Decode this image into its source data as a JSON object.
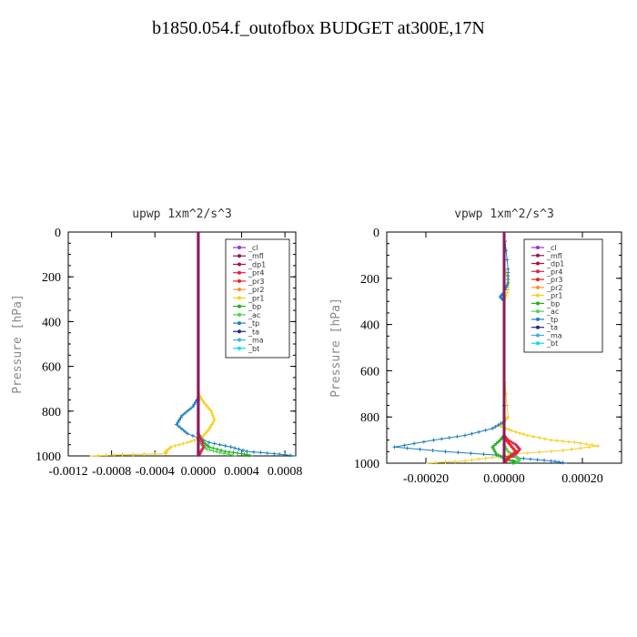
{
  "figure_title": "b1850.054.f_outofbox  BUDGET at300E,17N",
  "legend_labels": [
    "_cl",
    "_mfl",
    "_dp1",
    "_pr4",
    "_pr3",
    "_pr2",
    "_pr1",
    "_bp",
    "_ac",
    "_tp",
    "_ta",
    "_ma",
    "_bt"
  ],
  "colors": {
    "_cl": "#9b30d9",
    "_mfl": "#8b1a5a",
    "_dp1": "#b0103a",
    "_pr4": "#e0204a",
    "_pr3": "#f02020",
    "_pr2": "#ff9030",
    "_pr1": "#f5d020",
    "_bp": "#20b020",
    "_ac": "#50d050",
    "_tp": "#1e7fc0",
    "_ta": "#1a2a90",
    "_ma": "#40b0e0",
    "_bt": "#00e0f0"
  },
  "chart_data": [
    {
      "type": "line",
      "title": "upwp  1xm^2/s^3",
      "ylabel": "Pressure [hPa]",
      "xlabel": "",
      "xlim": [
        -0.0012,
        0.0009
      ],
      "ylim": [
        1000,
        0
      ],
      "xticks": [
        "-0.0012",
        "-0.0008",
        "-0.0004",
        "0.0000",
        "0.0004",
        "0.0008"
      ],
      "xtick_values": [
        -0.0012,
        -0.0008,
        -0.0004,
        0,
        0.0004,
        0.0008
      ],
      "yticks": [
        0,
        200,
        400,
        600,
        800,
        1000
      ],
      "legend_position": "top-right",
      "series": [
        {
          "name": "_pr1",
          "x": [
            0,
            0,
            5e-05,
            0.00012,
            0.00015,
            0.0001,
            3e-05,
            -0.0001,
            -0.00025,
            -0.0003,
            -0.0003,
            -0.0007,
            -0.001
          ],
          "y": [
            0,
            720,
            760,
            800,
            840,
            880,
            920,
            940,
            960,
            980,
            990,
            995,
            1000
          ]
        },
        {
          "name": "_tp",
          "x": [
            0,
            0,
            -5e-05,
            -0.00015,
            -0.0002,
            -0.0001,
            0.0001,
            0.0003,
            0.00045,
            0.0007,
            0.0009
          ],
          "y": [
            0,
            740,
            780,
            820,
            860,
            900,
            940,
            960,
            980,
            990,
            1000
          ]
        },
        {
          "name": "_bp",
          "x": [
            0,
            0,
            5e-05,
            0.0001,
            0.00025,
            0.0004,
            0.0005
          ],
          "y": [
            0,
            900,
            940,
            960,
            980,
            990,
            1000
          ]
        },
        {
          "name": "_ac",
          "x": [
            0,
            0,
            3e-05,
            8e-05,
            0.0002,
            0.00035
          ],
          "y": [
            0,
            920,
            950,
            970,
            985,
            1000
          ]
        },
        {
          "name": "_pr4",
          "x": [
            0,
            0,
            3e-05,
            5e-05,
            2e-05,
            0
          ],
          "y": [
            0,
            900,
            930,
            960,
            985,
            1000
          ]
        },
        {
          "name": "_cl",
          "x": [
            0,
            0
          ],
          "y": [
            0,
            1000
          ]
        },
        {
          "name": "_mfl",
          "x": [
            0,
            0
          ],
          "y": [
            0,
            1000
          ]
        }
      ]
    },
    {
      "type": "line",
      "title": "vpwp  1xm^2/s^3",
      "ylabel": "Pressure [hPa]",
      "xlabel": "",
      "xlim": [
        -0.0003,
        0.0003
      ],
      "ylim": [
        1000,
        0
      ],
      "xticks": [
        "-0.00020",
        "0.00000",
        "0.00020"
      ],
      "xtick_values": [
        -0.0002,
        0,
        0.0002
      ],
      "yticks": [
        0,
        200,
        400,
        600,
        800,
        1000
      ],
      "legend_position": "top-right",
      "series": [
        {
          "name": "_pr1",
          "x": [
            0,
            0,
            1e-05,
            1e-05,
            0,
            0,
            1e-05,
            0,
            -1e-05,
            2e-05,
            6e-05,
            0.00012,
            0.00018,
            0.00024,
            0.00015,
            3e-05,
            -3e-05,
            -0.0001,
            -0.0002
          ],
          "y": [
            0,
            150,
            200,
            250,
            300,
            600,
            800,
            820,
            840,
            860,
            880,
            900,
            910,
            925,
            945,
            960,
            975,
            990,
            1000
          ]
        },
        {
          "name": "_tp",
          "x": [
            0,
            1e-05,
            1e-05,
            0,
            -1e-05,
            0,
            0,
            -3e-05,
            -0.0001,
            -0.00018,
            -0.00028,
            -0.00015,
            -2e-05,
            5e-05,
            0.00012,
            0.00016
          ],
          "y": [
            0,
            160,
            220,
            260,
            280,
            300,
            820,
            850,
            880,
            900,
            930,
            950,
            965,
            980,
            990,
            1000
          ]
        },
        {
          "name": "_bp",
          "x": [
            0,
            0,
            -1e-05,
            -3e-05,
            -2e-05,
            0,
            2e-05,
            3e-05,
            2e-05
          ],
          "y": [
            0,
            880,
            900,
            930,
            960,
            980,
            990,
            995,
            1000
          ]
        },
        {
          "name": "_ac",
          "x": [
            0,
            0,
            1e-05,
            3e-05,
            4e-05,
            3e-05
          ],
          "y": [
            0,
            920,
            950,
            970,
            985,
            1000
          ]
        },
        {
          "name": "_pr4",
          "x": [
            0,
            0,
            1e-05,
            3e-05,
            4e-05,
            3e-05,
            1e-05,
            0
          ],
          "y": [
            0,
            880,
            900,
            920,
            940,
            960,
            980,
            1000
          ]
        },
        {
          "name": "_pr3",
          "x": [
            0,
            0,
            1e-05,
            2e-05,
            3e-05,
            1e-05,
            0
          ],
          "y": [
            0,
            890,
            910,
            930,
            950,
            975,
            1000
          ]
        },
        {
          "name": "_cl",
          "x": [
            0,
            0
          ],
          "y": [
            0,
            1000
          ]
        },
        {
          "name": "_mfl",
          "x": [
            0,
            0
          ],
          "y": [
            0,
            1000
          ]
        }
      ]
    }
  ]
}
